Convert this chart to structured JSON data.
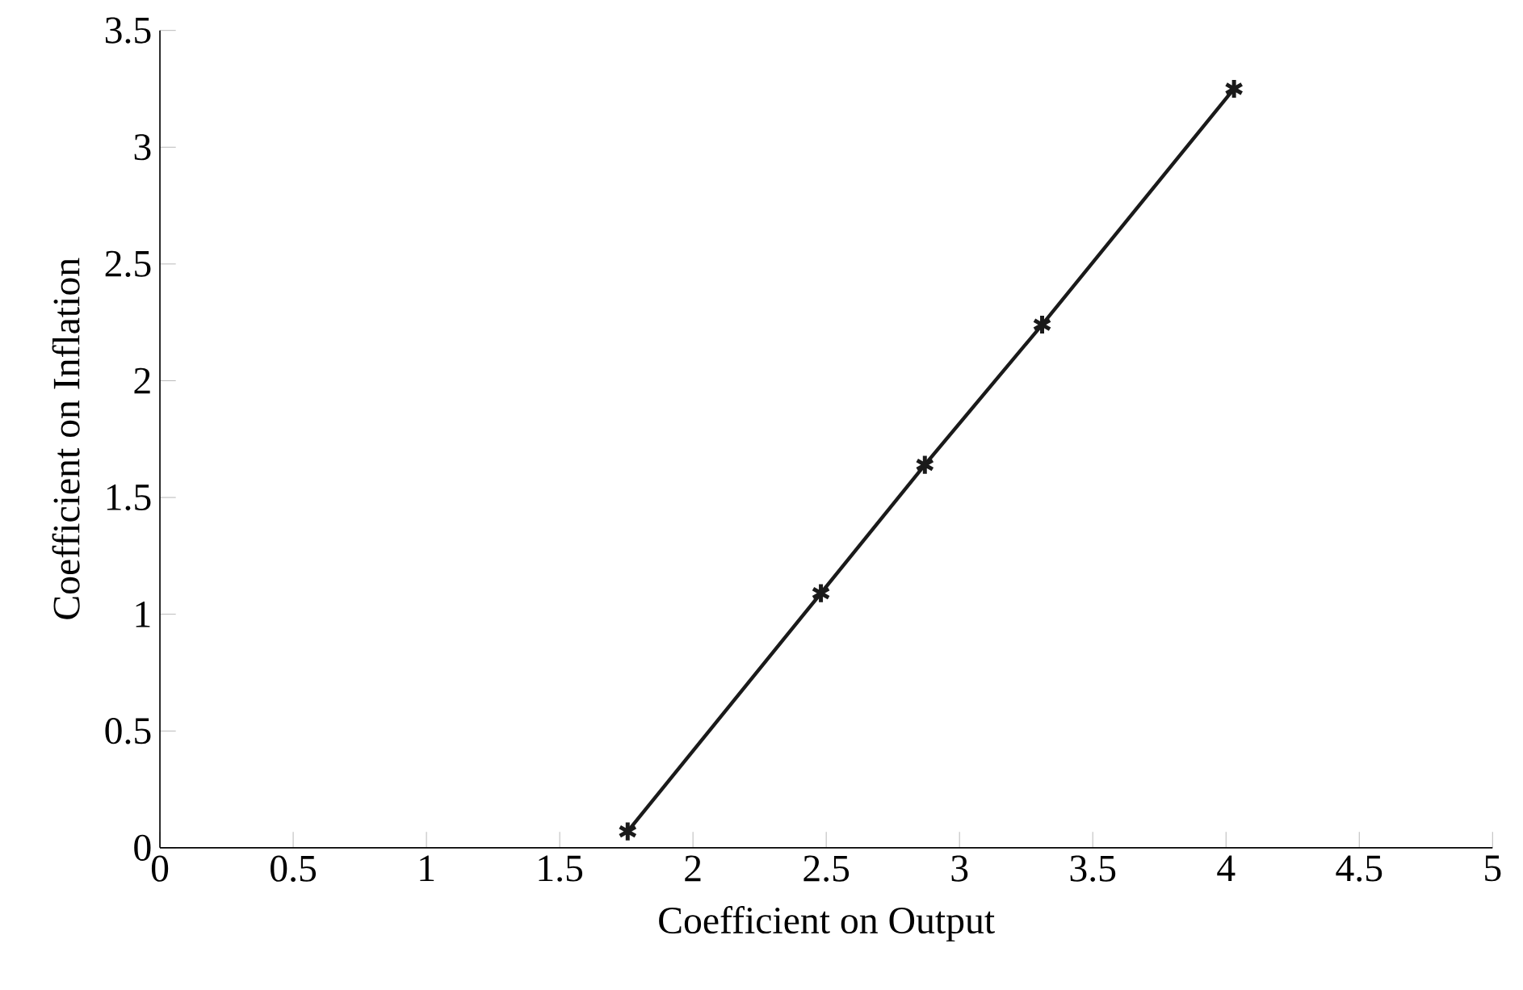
{
  "chart_data": {
    "type": "line",
    "xlabel": "Coefficient on Output",
    "ylabel": "Coefficient on Inflation",
    "x": [
      1.755,
      2.48,
      2.87,
      3.31,
      4.03
    ],
    "series": [
      {
        "color": "#1a1a1a",
        "values": [
          0.07,
          1.09,
          1.64,
          2.24,
          3.25
        ]
      }
    ],
    "xlim": [
      0,
      5
    ],
    "ylim": [
      0,
      3.5
    ],
    "xticks": [
      0,
      0.5,
      1,
      1.5,
      2,
      2.5,
      3,
      3.5,
      4,
      4.5,
      5
    ],
    "yticks": [
      0,
      0.5,
      1,
      1.5,
      2,
      2.5,
      3,
      3.5
    ],
    "marker": "cross",
    "line_style": "solid",
    "grid": false
  }
}
